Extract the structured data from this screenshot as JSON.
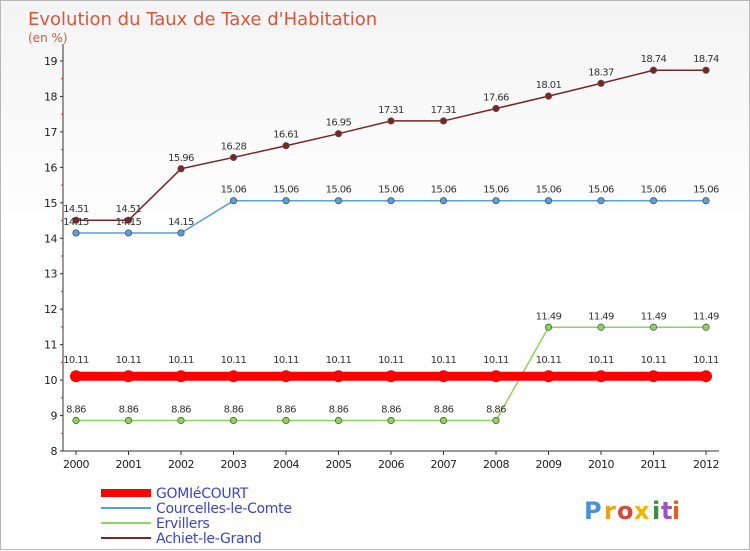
{
  "chart_data": {
    "type": "line",
    "title": "Evolution du Taux de Taxe d'Habitation",
    "subtitle": "(en %)",
    "xlabel": "",
    "ylabel": "",
    "x": [
      "2000",
      "2001",
      "2002",
      "2003",
      "2004",
      "2005",
      "2006",
      "2007",
      "2008",
      "2009",
      "2010",
      "2011",
      "2012"
    ],
    "ylim": [
      8,
      19
    ],
    "yticks": [
      8,
      9,
      10,
      11,
      12,
      13,
      14,
      15,
      16,
      17,
      18,
      19
    ],
    "grid": false,
    "legend_position": "bottom-left",
    "series": [
      {
        "name": "GOMIéCOURT",
        "color": "#ff0000",
        "values": [
          10.11,
          10.11,
          10.11,
          10.11,
          10.11,
          10.11,
          10.11,
          10.11,
          10.11,
          10.11,
          10.11,
          10.11,
          10.11
        ],
        "labels": [
          "10.11",
          "10.11",
          "10.11",
          "10.11",
          "10.11",
          "10.11",
          "10.11",
          "10.11",
          "10.11",
          "10.11",
          "10.11",
          "10.11",
          "10.11"
        ]
      },
      {
        "name": "Courcelles-le-Comte",
        "color": "#5e9ed6",
        "values": [
          14.15,
          14.15,
          14.15,
          15.06,
          15.06,
          15.06,
          15.06,
          15.06,
          15.06,
          15.06,
          15.06,
          15.06,
          15.06
        ],
        "labels": [
          "14.15",
          "14.15",
          "14.15",
          "15.06",
          "15.06",
          "15.06",
          "15.06",
          "15.06",
          "15.06",
          "15.06",
          "15.06",
          "15.06",
          "15.06"
        ]
      },
      {
        "name": "Ervillers",
        "color": "#8ed35a",
        "values": [
          8.86,
          8.86,
          8.86,
          8.86,
          8.86,
          8.86,
          8.86,
          8.86,
          8.86,
          11.49,
          11.49,
          11.49,
          11.49
        ],
        "labels": [
          "8.86",
          "8.86",
          "8.86",
          "8.86",
          "8.86",
          "8.86",
          "8.86",
          "8.86",
          "8.86",
          "11.49",
          "11.49",
          "11.49",
          "11.49"
        ]
      },
      {
        "name": "Achiet-le-Grand",
        "color": "#7a2525",
        "values": [
          14.51,
          14.51,
          15.96,
          16.28,
          16.61,
          16.95,
          17.31,
          17.31,
          17.66,
          18.01,
          18.37,
          18.74,
          18.74
        ],
        "labels": [
          "14.51",
          "14.51",
          "15.96",
          "16.28",
          "16.61",
          "16.95",
          "17.31",
          "17.31",
          "17.66",
          "18.01",
          "18.37",
          "18.74",
          "18.74"
        ]
      }
    ]
  },
  "branding": {
    "logo_text": "Proxiti",
    "letters": [
      "P",
      "r",
      "o",
      "x",
      "i",
      "t",
      "i"
    ],
    "colors": [
      "#4a90d9",
      "#e8a317",
      "#d44a3a",
      "#f2b400",
      "#3c8f3c",
      "#a050c0",
      "#e06020"
    ]
  }
}
